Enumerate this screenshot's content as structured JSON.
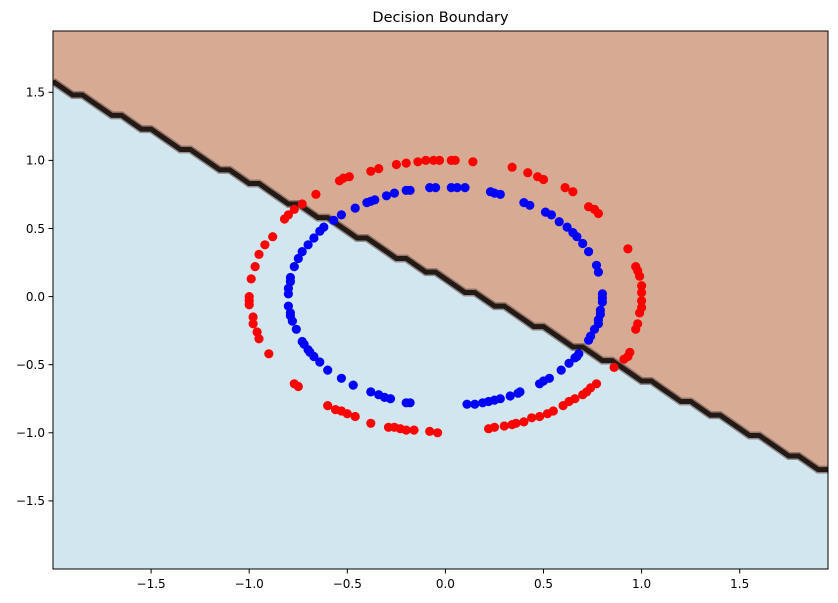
{
  "chart_data": {
    "type": "scatter",
    "title": "Decision Boundary",
    "xlabel": "",
    "ylabel": "",
    "xlim": [
      -2.0,
      1.95
    ],
    "ylim": [
      -2.0,
      1.95
    ],
    "x_ticks": [
      -1.5,
      -1.0,
      -0.5,
      0.0,
      0.5,
      1.0,
      1.5
    ],
    "x_tick_labels": [
      "−1.5",
      "−1.0",
      "−0.5",
      "0.0",
      "0.5",
      "1.0",
      "1.5"
    ],
    "y_ticks": [
      1.5,
      1.0,
      0.5,
      0.0,
      -0.5,
      -1.0,
      -1.5
    ],
    "y_tick_labels": [
      "1.5",
      "1.0",
      "0.5",
      "0.0",
      "−0.5",
      "−1.0",
      "−1.5"
    ],
    "grid": false,
    "boundary": {
      "points": [
        [
          -2.0,
          1.58
        ],
        [
          -1.95,
          1.53
        ],
        [
          -1.9,
          1.48
        ],
        [
          -1.85,
          1.48
        ],
        [
          -1.8,
          1.43
        ],
        [
          -1.75,
          1.38
        ],
        [
          -1.7,
          1.33
        ],
        [
          -1.65,
          1.33
        ],
        [
          -1.6,
          1.28
        ],
        [
          -1.55,
          1.23
        ],
        [
          -1.5,
          1.23
        ],
        [
          -1.45,
          1.18
        ],
        [
          -1.4,
          1.13
        ],
        [
          -1.35,
          1.08
        ],
        [
          -1.3,
          1.08
        ],
        [
          -1.25,
          1.03
        ],
        [
          -1.2,
          0.98
        ],
        [
          -1.15,
          0.93
        ],
        [
          -1.1,
          0.93
        ],
        [
          -1.05,
          0.88
        ],
        [
          -1.0,
          0.83
        ],
        [
          -0.95,
          0.83
        ],
        [
          -0.9,
          0.78
        ],
        [
          -0.85,
          0.73
        ],
        [
          -0.8,
          0.68
        ],
        [
          -0.75,
          0.68
        ],
        [
          -0.7,
          0.63
        ],
        [
          -0.65,
          0.58
        ],
        [
          -0.6,
          0.58
        ],
        [
          -0.55,
          0.53
        ],
        [
          -0.5,
          0.48
        ],
        [
          -0.45,
          0.43
        ],
        [
          -0.4,
          0.43
        ],
        [
          -0.35,
          0.38
        ],
        [
          -0.3,
          0.33
        ],
        [
          -0.25,
          0.28
        ],
        [
          -0.2,
          0.28
        ],
        [
          -0.15,
          0.23
        ],
        [
          -0.1,
          0.18
        ],
        [
          -0.05,
          0.18
        ],
        [
          0.0,
          0.13
        ],
        [
          0.05,
          0.08
        ],
        [
          0.1,
          0.03
        ],
        [
          0.15,
          0.03
        ],
        [
          0.2,
          -0.02
        ],
        [
          0.25,
          -0.07
        ],
        [
          0.3,
          -0.07
        ],
        [
          0.35,
          -0.12
        ],
        [
          0.4,
          -0.17
        ],
        [
          0.45,
          -0.22
        ],
        [
          0.5,
          -0.22
        ],
        [
          0.55,
          -0.27
        ],
        [
          0.6,
          -0.32
        ],
        [
          0.65,
          -0.37
        ],
        [
          0.7,
          -0.37
        ],
        [
          0.75,
          -0.42
        ],
        [
          0.8,
          -0.47
        ],
        [
          0.85,
          -0.47
        ],
        [
          0.9,
          -0.52
        ],
        [
          0.95,
          -0.57
        ],
        [
          1.0,
          -0.62
        ],
        [
          1.05,
          -0.62
        ],
        [
          1.1,
          -0.67
        ],
        [
          1.15,
          -0.72
        ],
        [
          1.2,
          -0.77
        ],
        [
          1.25,
          -0.77
        ],
        [
          1.3,
          -0.82
        ],
        [
          1.35,
          -0.87
        ],
        [
          1.4,
          -0.87
        ],
        [
          1.45,
          -0.92
        ],
        [
          1.5,
          -0.97
        ],
        [
          1.55,
          -1.02
        ],
        [
          1.6,
          -1.02
        ],
        [
          1.65,
          -1.07
        ],
        [
          1.7,
          -1.12
        ],
        [
          1.75,
          -1.17
        ],
        [
          1.8,
          -1.17
        ],
        [
          1.85,
          -1.22
        ],
        [
          1.9,
          -1.27
        ],
        [
          1.95,
          -1.27
        ]
      ],
      "upper_region_color": "#d7aa94",
      "lower_region_color": "#d2e6ef",
      "line_color": "#231a16"
    },
    "series": [
      {
        "color": "#ff0000",
        "points": [
          [
            -1.0,
            0.0
          ],
          [
            -0.99,
            0.13
          ],
          [
            -0.97,
            0.22
          ],
          [
            -0.95,
            0.31
          ],
          [
            -0.92,
            0.38
          ],
          [
            -0.88,
            0.44
          ],
          [
            -0.82,
            0.57
          ],
          [
            -0.8,
            0.6
          ],
          [
            -0.77,
            0.64
          ],
          [
            -0.73,
            0.68
          ],
          [
            -0.66,
            0.75
          ],
          [
            -0.54,
            0.85
          ],
          [
            -0.52,
            0.87
          ],
          [
            -0.49,
            0.88
          ],
          [
            -0.38,
            0.92
          ],
          [
            -0.34,
            0.94
          ],
          [
            -0.25,
            0.97
          ],
          [
            -0.2,
            0.98
          ],
          [
            -0.14,
            0.99
          ],
          [
            -0.1,
            1.0
          ],
          [
            -0.06,
            1.0
          ],
          [
            -0.03,
            1.0
          ],
          [
            0.03,
            1.0
          ],
          [
            0.05,
            1.0
          ],
          [
            0.14,
            0.99
          ],
          [
            0.34,
            0.95
          ],
          [
            0.42,
            0.91
          ],
          [
            0.47,
            0.88
          ],
          [
            0.5,
            0.86
          ],
          [
            0.61,
            0.8
          ],
          [
            0.65,
            0.77
          ],
          [
            0.73,
            0.66
          ],
          [
            0.76,
            0.64
          ],
          [
            0.78,
            0.61
          ],
          [
            0.93,
            0.35
          ],
          [
            0.97,
            0.22
          ],
          [
            0.98,
            0.19
          ],
          [
            0.99,
            0.15
          ],
          [
            1.0,
            0.08
          ],
          [
            1.0,
            0.03
          ],
          [
            1.0,
            -0.03
          ],
          [
            1.0,
            -0.08
          ],
          [
            0.99,
            -0.12
          ],
          [
            0.98,
            -0.2
          ],
          [
            0.97,
            -0.24
          ],
          [
            0.94,
            -0.41
          ],
          [
            0.93,
            -0.44
          ],
          [
            0.91,
            -0.46
          ],
          [
            0.86,
            -0.52
          ],
          [
            0.77,
            -0.64
          ],
          [
            0.74,
            -0.67
          ],
          [
            0.72,
            -0.7
          ],
          [
            0.7,
            -0.72
          ],
          [
            0.66,
            -0.75
          ],
          [
            0.63,
            -0.77
          ],
          [
            0.6,
            -0.8
          ],
          [
            0.55,
            -0.84
          ],
          [
            0.52,
            -0.86
          ],
          [
            0.48,
            -0.88
          ],
          [
            0.44,
            -0.89
          ],
          [
            0.4,
            -0.92
          ],
          [
            0.36,
            -0.93
          ],
          [
            0.34,
            -0.94
          ],
          [
            0.3,
            -0.95
          ],
          [
            0.25,
            -0.96
          ],
          [
            0.22,
            -0.97
          ],
          [
            -0.04,
            -1.0
          ],
          [
            -0.08,
            -0.99
          ],
          [
            -0.16,
            -0.98
          ],
          [
            -0.2,
            -0.98
          ],
          [
            -0.23,
            -0.97
          ],
          [
            -0.26,
            -0.96
          ],
          [
            -0.29,
            -0.96
          ],
          [
            -0.38,
            -0.93
          ],
          [
            -0.46,
            -0.88
          ],
          [
            -0.5,
            -0.86
          ],
          [
            -0.53,
            -0.84
          ],
          [
            -0.56,
            -0.83
          ],
          [
            -0.6,
            -0.8
          ],
          [
            -0.77,
            -0.64
          ],
          [
            -0.75,
            -0.66
          ],
          [
            -0.9,
            -0.42
          ],
          [
            -0.95,
            -0.31
          ],
          [
            -0.96,
            -0.26
          ],
          [
            -0.98,
            -0.2
          ],
          [
            -0.98,
            -0.15
          ],
          [
            -1.0,
            -0.06
          ],
          [
            -1.0,
            -0.03
          ]
        ]
      },
      {
        "color": "#0000ff",
        "points": [
          [
            -0.8,
            0.02
          ],
          [
            -0.8,
            0.06
          ],
          [
            -0.79,
            0.11
          ],
          [
            -0.79,
            0.14
          ],
          [
            -0.77,
            0.22
          ],
          [
            -0.75,
            0.28
          ],
          [
            -0.73,
            0.33
          ],
          [
            -0.7,
            0.38
          ],
          [
            -0.67,
            0.43
          ],
          [
            -0.64,
            0.48
          ],
          [
            -0.62,
            0.51
          ],
          [
            -0.57,
            0.56
          ],
          [
            -0.53,
            0.6
          ],
          [
            -0.46,
            0.65
          ],
          [
            -0.4,
            0.69
          ],
          [
            -0.38,
            0.7
          ],
          [
            -0.36,
            0.71
          ],
          [
            -0.3,
            0.74
          ],
          [
            -0.26,
            0.76
          ],
          [
            -0.2,
            0.78
          ],
          [
            -0.18,
            0.78
          ],
          [
            -0.08,
            0.8
          ],
          [
            -0.05,
            0.8
          ],
          [
            0.03,
            0.8
          ],
          [
            0.06,
            0.8
          ],
          [
            0.1,
            0.8
          ],
          [
            0.23,
            0.77
          ],
          [
            0.25,
            0.76
          ],
          [
            0.28,
            0.75
          ],
          [
            0.4,
            0.69
          ],
          [
            0.43,
            0.67
          ],
          [
            0.51,
            0.62
          ],
          [
            0.54,
            0.6
          ],
          [
            0.58,
            0.55
          ],
          [
            0.62,
            0.51
          ],
          [
            0.65,
            0.47
          ],
          [
            0.67,
            0.44
          ],
          [
            0.7,
            0.39
          ],
          [
            0.73,
            0.33
          ],
          [
            0.77,
            0.23
          ],
          [
            0.78,
            0.18
          ],
          [
            0.8,
            0.02
          ],
          [
            0.8,
            -0.01
          ],
          [
            0.8,
            -0.04
          ],
          [
            0.79,
            -0.1
          ],
          [
            0.79,
            -0.13
          ],
          [
            0.78,
            -0.17
          ],
          [
            0.78,
            -0.2
          ],
          [
            0.76,
            -0.24
          ],
          [
            0.74,
            -0.29
          ],
          [
            0.73,
            -0.32
          ],
          [
            0.68,
            -0.42
          ],
          [
            0.67,
            -0.44
          ],
          [
            0.66,
            -0.45
          ],
          [
            0.63,
            -0.49
          ],
          [
            0.59,
            -0.54
          ],
          [
            0.53,
            -0.6
          ],
          [
            0.5,
            -0.62
          ],
          [
            0.48,
            -0.64
          ],
          [
            0.38,
            -0.7
          ],
          [
            0.37,
            -0.71
          ],
          [
            0.33,
            -0.73
          ],
          [
            0.28,
            -0.75
          ],
          [
            0.25,
            -0.76
          ],
          [
            0.22,
            -0.77
          ],
          [
            0.19,
            -0.78
          ],
          [
            0.15,
            -0.79
          ],
          [
            0.11,
            -0.79
          ],
          [
            -0.18,
            -0.78
          ],
          [
            -0.2,
            -0.78
          ],
          [
            -0.28,
            -0.75
          ],
          [
            -0.31,
            -0.74
          ],
          [
            -0.34,
            -0.72
          ],
          [
            -0.38,
            -0.7
          ],
          [
            -0.47,
            -0.65
          ],
          [
            -0.53,
            -0.6
          ],
          [
            -0.6,
            -0.54
          ],
          [
            -0.64,
            -0.48
          ],
          [
            -0.67,
            -0.44
          ],
          [
            -0.69,
            -0.41
          ],
          [
            -0.7,
            -0.39
          ],
          [
            -0.72,
            -0.35
          ],
          [
            -0.73,
            -0.33
          ],
          [
            -0.76,
            -0.24
          ],
          [
            -0.78,
            -0.18
          ],
          [
            -0.79,
            -0.14
          ],
          [
            -0.79,
            -0.12
          ],
          [
            -0.8,
            -0.07
          ]
        ]
      }
    ]
  }
}
